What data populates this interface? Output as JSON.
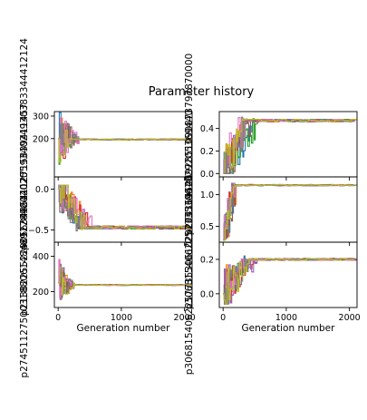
{
  "figure_title": "Parameter history",
  "chart_data": [
    {
      "type": "line",
      "position": "top-left",
      "ylabel": "p2122442140255934024930383344412124",
      "yticks": [
        "200",
        "300"
      ],
      "ylim": [
        30,
        320
      ],
      "xlim": [
        -60,
        2120
      ],
      "series_count": 9,
      "start": 200,
      "final": 196,
      "settle_generation": 300,
      "noise": 2.5,
      "spike_min": 30,
      "spike_max": 315
    },
    {
      "type": "line",
      "position": "top-right",
      "ylabel": "p27411452692851090873797870000",
      "yticks": [
        "0.0",
        "0.2",
        "0.4"
      ],
      "ylim": [
        -0.03,
        0.55
      ],
      "xlim": [
        -60,
        2120
      ],
      "series_count": 9,
      "start": 0.01,
      "final": 0.47,
      "settle_generation": 420,
      "noise": 0.012,
      "spike_min": 0.0,
      "spike_max": 0.52
    },
    {
      "type": "line",
      "position": "middle-left",
      "ylabel": "p2138225522905634854112715839411457",
      "yticks": [
        "-0.5",
        "0.0"
      ],
      "ylim": [
        -0.65,
        0.15
      ],
      "xlim": [
        -60,
        2120
      ],
      "series_count": 9,
      "start": 0.0,
      "final": -0.47,
      "settle_generation": 420,
      "noise": 0.02,
      "spike_min": -0.58,
      "spike_max": 0.05
    },
    {
      "type": "line",
      "position": "middle-right",
      "ylabel": "p30681540622577353061029205369440",
      "yticks": [
        "0.5",
        "1.0"
      ],
      "ylim": [
        0.25,
        1.28
      ],
      "xlim": [
        -60,
        2120
      ],
      "series_count": 9,
      "start": 0.28,
      "final": 1.15,
      "settle_generation": 160,
      "noise": 0.01,
      "spike_min": 0.28,
      "spike_max": 1.18
    },
    {
      "type": "line",
      "position": "bottom-left",
      "ylabel": "p274511275003188061484891789602020",
      "yticks": [
        "200",
        "400"
      ],
      "ylim": [
        110,
        480
      ],
      "xlim": [
        -60,
        2120
      ],
      "xticks": [
        "0",
        "1000",
        "2000"
      ],
      "xlabel": "Generation number",
      "series_count": 9,
      "start": 250,
      "final": 238,
      "settle_generation": 260,
      "noise": 3,
      "spike_min": 130,
      "spike_max": 440
    },
    {
      "type": "line",
      "position": "bottom-right",
      "ylabel": "p30681540622577353061029205369440",
      "yticks": [
        "0.0",
        "0.2"
      ],
      "ylim": [
        -0.08,
        0.3
      ],
      "xlim": [
        -60,
        2120
      ],
      "xticks": [
        "0",
        "1000",
        "2000"
      ],
      "xlabel": "Generation number",
      "series_count": 9,
      "start": 0.0,
      "final": 0.2,
      "settle_generation": 420,
      "noise": 0.006,
      "spike_min": -0.06,
      "spike_max": 0.28
    }
  ],
  "colors": [
    "#1f77b4",
    "#ff7f0e",
    "#2ca02c",
    "#d62728",
    "#9467bd",
    "#8c564b",
    "#e377c2",
    "#7f7f7f",
    "#bcbd22"
  ]
}
